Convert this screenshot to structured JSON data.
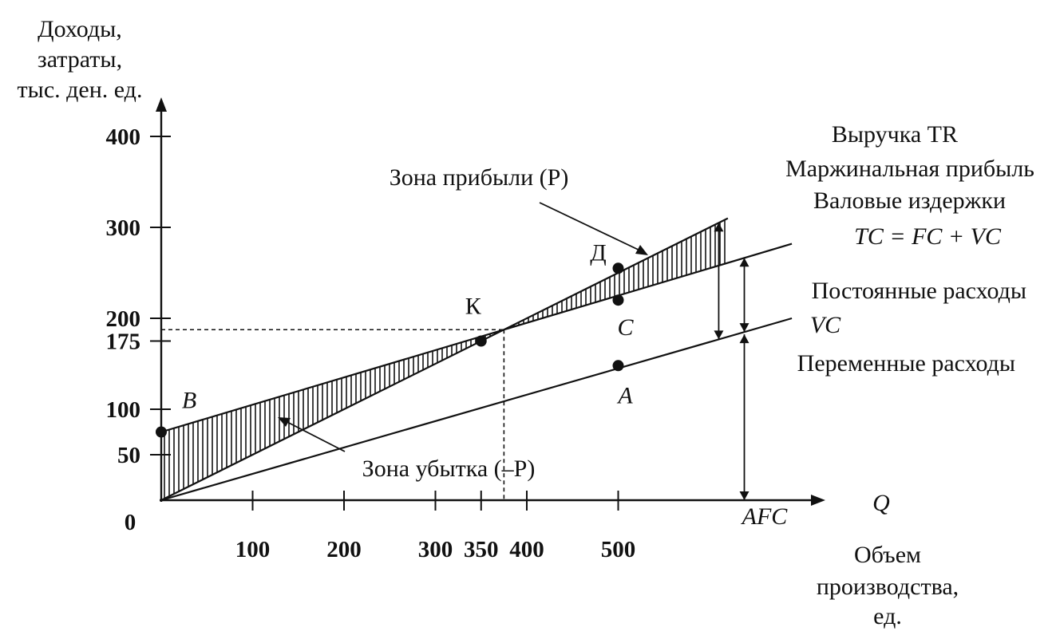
{
  "colors": {
    "ink": "#111111",
    "background": "#ffffff"
  },
  "chart_data": {
    "type": "line",
    "title": "",
    "ylabel": [
      "Доходы,",
      "затраты,",
      "тыс. ден. ед."
    ],
    "xlabel": [
      "Объем",
      "производства,",
      "ед."
    ],
    "x_axis_symbol": "Q",
    "xlim": [
      0,
      720
    ],
    "ylim": [
      0,
      400
    ],
    "x_ticks": [
      100,
      200,
      300,
      350,
      400,
      500
    ],
    "x_tick_labels": [
      "100",
      "200",
      "300",
      "350",
      "400",
      "500"
    ],
    "y_ticks": [
      50,
      100,
      175,
      200,
      300,
      400
    ],
    "y_tick_labels": [
      "50",
      "100",
      "175",
      "200",
      "300",
      "400"
    ],
    "origin_label": "0",
    "series": [
      {
        "key": "tr",
        "name": "Выручка TR",
        "x": [
          0,
          620
        ],
        "y": [
          0,
          310
        ]
      },
      {
        "key": "tc",
        "name": "Валовые издержки TC = FC + VC",
        "x": [
          0,
          690
        ],
        "y": [
          75,
          282
        ]
      },
      {
        "key": "vc",
        "name": "VC",
        "x": [
          0,
          690
        ],
        "y": [
          0,
          200
        ]
      }
    ],
    "points": [
      {
        "label": "B",
        "x": 0,
        "y": 75,
        "italic": true
      },
      {
        "label": "К",
        "x": 350,
        "y": 175,
        "italic": false
      },
      {
        "label": "Д",
        "x": 500,
        "y": 255,
        "italic": false
      },
      {
        "label": "C",
        "x": 500,
        "y": 220,
        "italic": true
      },
      {
        "label": "A",
        "x": 500,
        "y": 148,
        "italic": true
      }
    ],
    "annotations": {
      "tr": "Выручка TR",
      "marginal_profit": "Маржинальная прибыль",
      "gross_costs": "Валовые издержки",
      "tc_formula": "TC = FC + VC",
      "fixed_costs": "Постоянные расходы",
      "vc": "VC",
      "variable_costs": "Переменные расходы",
      "afc": "AFC",
      "profit_zone": "Зона прибыли (P)",
      "loss_zone": "Зона убытка (–P)"
    }
  }
}
